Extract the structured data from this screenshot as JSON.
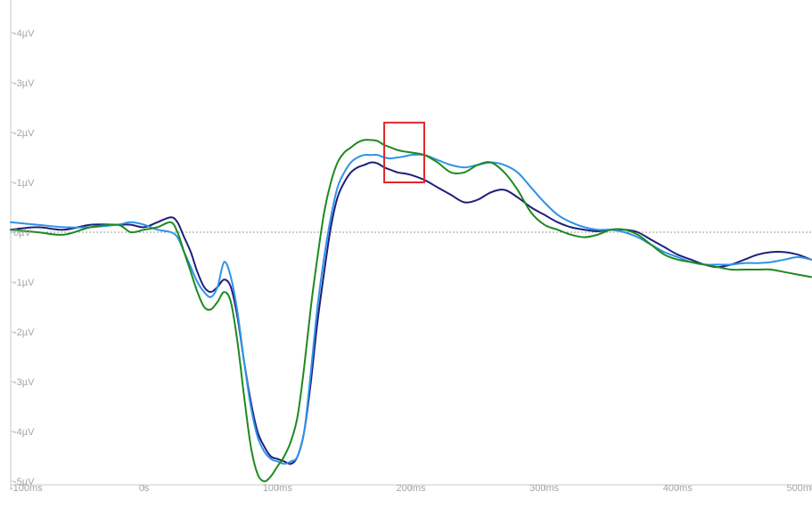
{
  "chart_data": {
    "type": "line",
    "title": "",
    "xlabel": "",
    "ylabel": "",
    "xlim": [
      -100,
      500
    ],
    "ylim": [
      -5,
      4.5
    ],
    "y_inverted": true,
    "x_ticks": [
      {
        "value": -100,
        "label": "-100ms"
      },
      {
        "value": 0,
        "label": "0s"
      },
      {
        "value": 100,
        "label": "100ms"
      },
      {
        "value": 200,
        "label": "200ms"
      },
      {
        "value": 300,
        "label": "300ms"
      },
      {
        "value": 400,
        "label": "400ms"
      },
      {
        "value": 500,
        "label": "500m"
      }
    ],
    "y_ticks": [
      {
        "value": 4,
        "label": "-4µV"
      },
      {
        "value": 3,
        "label": "-3µV"
      },
      {
        "value": 2,
        "label": "-2µV"
      },
      {
        "value": 1,
        "label": "-1µV"
      },
      {
        "value": 0,
        "label": "0µV"
      },
      {
        "value": -1,
        "label": "-1µV"
      },
      {
        "value": -2,
        "label": "-2µV"
      },
      {
        "value": -3,
        "label": "-3µV"
      },
      {
        "value": -4,
        "label": "-4µV"
      },
      {
        "value": -5,
        "label": "-5µV"
      }
    ],
    "zero_line": "dashed",
    "grid": false,
    "colors": {
      "axis": "#c8c8c8",
      "tick_label": "#a6a6a6",
      "zero_line": "#9a9a9a",
      "highlight": "#e0262b"
    },
    "highlight_box": {
      "x": [
        180,
        210
      ],
      "y": [
        1.0,
        2.2
      ]
    },
    "series": [
      {
        "color": "#1f1f7a",
        "x": [
          -100,
          -80,
          -60,
          -40,
          -20,
          -10,
          0,
          10,
          20,
          25,
          30,
          35,
          40,
          45,
          50,
          55,
          60,
          65,
          70,
          75,
          80,
          85,
          90,
          95,
          100,
          105,
          110,
          115,
          120,
          125,
          130,
          135,
          140,
          145,
          150,
          155,
          160,
          165,
          170,
          175,
          180,
          185,
          190,
          195,
          200,
          210,
          220,
          230,
          240,
          250,
          260,
          270,
          280,
          290,
          300,
          310,
          320,
          330,
          340,
          350,
          360,
          370,
          380,
          390,
          400,
          410,
          420,
          430,
          440,
          450,
          460,
          470,
          480,
          490,
          500
        ],
        "y": [
          0.05,
          0.1,
          0.05,
          0.15,
          0.15,
          0.15,
          0.1,
          0.2,
          0.3,
          0.2,
          -0.1,
          -0.4,
          -0.8,
          -1.1,
          -1.2,
          -1.1,
          -0.95,
          -1.1,
          -1.7,
          -2.6,
          -3.4,
          -4.0,
          -4.3,
          -4.5,
          -4.55,
          -4.6,
          -4.65,
          -4.5,
          -4.0,
          -3.0,
          -1.8,
          -0.8,
          0.1,
          0.7,
          1.0,
          1.2,
          1.3,
          1.35,
          1.4,
          1.38,
          1.3,
          1.25,
          1.2,
          1.18,
          1.15,
          1.05,
          0.9,
          0.75,
          0.6,
          0.65,
          0.8,
          0.85,
          0.7,
          0.5,
          0.35,
          0.2,
          0.1,
          0.05,
          0.02,
          0.05,
          0.05,
          0.0,
          -0.15,
          -0.3,
          -0.45,
          -0.55,
          -0.65,
          -0.7,
          -0.65,
          -0.55,
          -0.45,
          -0.4,
          -0.4,
          -0.45,
          -0.55
        ]
      },
      {
        "color": "#2e93e8",
        "x": [
          -100,
          -80,
          -60,
          -40,
          -20,
          -10,
          0,
          10,
          20,
          25,
          30,
          35,
          40,
          45,
          50,
          55,
          60,
          65,
          70,
          75,
          80,
          85,
          90,
          95,
          100,
          105,
          110,
          115,
          120,
          125,
          130,
          135,
          140,
          145,
          150,
          155,
          160,
          165,
          170,
          175,
          180,
          185,
          190,
          195,
          200,
          210,
          220,
          230,
          240,
          250,
          260,
          270,
          280,
          290,
          300,
          310,
          320,
          330,
          340,
          350,
          360,
          370,
          380,
          390,
          400,
          410,
          420,
          430,
          440,
          450,
          460,
          470,
          480,
          490,
          500
        ],
        "y": [
          0.2,
          0.15,
          0.1,
          0.1,
          0.15,
          0.2,
          0.15,
          0.05,
          0.0,
          -0.1,
          -0.4,
          -0.7,
          -1.0,
          -1.2,
          -1.3,
          -1.1,
          -0.6,
          -0.9,
          -1.6,
          -2.6,
          -3.5,
          -4.1,
          -4.4,
          -4.55,
          -4.6,
          -4.65,
          -4.6,
          -4.5,
          -4.0,
          -2.8,
          -1.5,
          -0.5,
          0.3,
          0.9,
          1.2,
          1.4,
          1.5,
          1.55,
          1.55,
          1.55,
          1.5,
          1.48,
          1.5,
          1.52,
          1.55,
          1.55,
          1.45,
          1.35,
          1.3,
          1.35,
          1.4,
          1.35,
          1.2,
          0.9,
          0.6,
          0.35,
          0.2,
          0.1,
          0.05,
          0.05,
          0.0,
          -0.1,
          -0.25,
          -0.4,
          -0.5,
          -0.6,
          -0.65,
          -0.65,
          -0.65,
          -0.62,
          -0.62,
          -0.6,
          -0.55,
          -0.5,
          -0.55
        ]
      },
      {
        "color": "#1e8a1e",
        "x": [
          -100,
          -80,
          -60,
          -40,
          -20,
          -10,
          0,
          10,
          20,
          25,
          30,
          35,
          40,
          45,
          50,
          55,
          60,
          65,
          70,
          75,
          80,
          85,
          90,
          95,
          100,
          105,
          110,
          115,
          120,
          125,
          130,
          135,
          140,
          145,
          150,
          155,
          160,
          165,
          170,
          175,
          180,
          185,
          190,
          195,
          200,
          210,
          220,
          230,
          240,
          250,
          260,
          270,
          280,
          290,
          300,
          310,
          320,
          330,
          340,
          350,
          360,
          370,
          380,
          390,
          400,
          410,
          420,
          430,
          440,
          450,
          460,
          470,
          480,
          490,
          500
        ],
        "y": [
          0.05,
          0.0,
          -0.05,
          0.1,
          0.15,
          0.0,
          0.05,
          0.1,
          0.2,
          0.0,
          -0.4,
          -0.8,
          -1.2,
          -1.5,
          -1.55,
          -1.4,
          -1.2,
          -1.4,
          -2.2,
          -3.3,
          -4.3,
          -4.85,
          -5.0,
          -4.9,
          -4.7,
          -4.5,
          -4.2,
          -3.7,
          -2.7,
          -1.5,
          -0.5,
          0.4,
          1.0,
          1.4,
          1.6,
          1.7,
          1.8,
          1.85,
          1.85,
          1.83,
          1.75,
          1.7,
          1.65,
          1.62,
          1.6,
          1.55,
          1.4,
          1.2,
          1.2,
          1.35,
          1.4,
          1.2,
          0.85,
          0.4,
          0.15,
          0.05,
          -0.05,
          -0.1,
          -0.05,
          0.05,
          0.05,
          -0.05,
          -0.25,
          -0.45,
          -0.55,
          -0.6,
          -0.65,
          -0.7,
          -0.75,
          -0.75,
          -0.75,
          -0.75,
          -0.8,
          -0.85,
          -0.9
        ]
      }
    ]
  }
}
